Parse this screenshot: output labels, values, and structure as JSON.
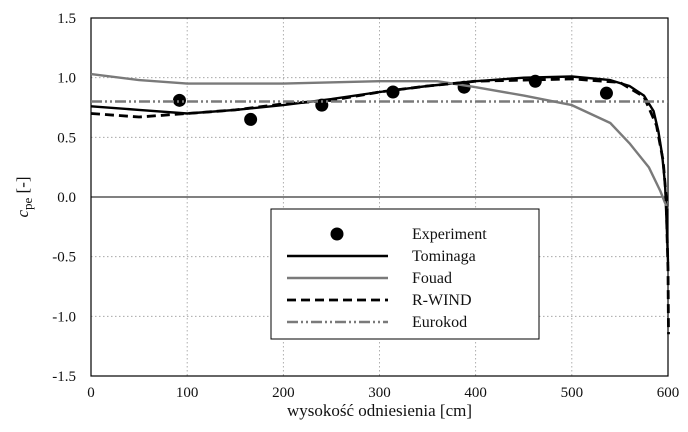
{
  "chart_data": {
    "type": "line",
    "xlabel": "wysokość odniesienia [cm]",
    "ylabel": {
      "main": "c",
      "subscript": "pe",
      "suffix": " [-]"
    },
    "xlim": [
      0,
      600
    ],
    "ylim": [
      -1.5,
      1.5
    ],
    "xticks": [
      "0",
      "100",
      "200",
      "300",
      "400",
      "500",
      "600"
    ],
    "yticks": [
      "1.5",
      "1.0",
      "0.5",
      "0.0",
      "-0.5",
      "-1.0",
      "-1.5"
    ],
    "xtick_values": [
      0,
      100,
      200,
      300,
      400,
      500,
      600
    ],
    "ytick_values": [
      1.5,
      1.0,
      0.5,
      0.0,
      -0.5,
      -1.0,
      -1.5
    ],
    "grid": true,
    "legend_position": "bottom-center",
    "series": [
      {
        "name": "Experiment",
        "kind": "markers",
        "color": "#000000",
        "points": [
          [
            92,
            0.81
          ],
          [
            166,
            0.65
          ],
          [
            240,
            0.77
          ],
          [
            314,
            0.88
          ],
          [
            388,
            0.92
          ],
          [
            462,
            0.97
          ],
          [
            536,
            0.87
          ]
        ]
      },
      {
        "name": "Tominaga",
        "kind": "line",
        "color": "#000000",
        "dash": "solid",
        "points": [
          [
            0,
            0.76
          ],
          [
            50,
            0.73
          ],
          [
            100,
            0.7
          ],
          [
            150,
            0.73
          ],
          [
            200,
            0.77
          ],
          [
            250,
            0.82
          ],
          [
            300,
            0.88
          ],
          [
            350,
            0.93
          ],
          [
            400,
            0.97
          ],
          [
            450,
            1.0
          ],
          [
            500,
            1.01
          ],
          [
            540,
            0.98
          ],
          [
            560,
            0.93
          ],
          [
            575,
            0.85
          ],
          [
            585,
            0.72
          ],
          [
            590,
            0.55
          ],
          [
            594,
            0.35
          ],
          [
            597,
            0.1
          ],
          [
            599,
            -0.3
          ],
          [
            600,
            -0.55
          ]
        ]
      },
      {
        "name": "Fouad",
        "kind": "line",
        "color": "#7a7a7a",
        "dash": "solid",
        "points": [
          [
            0,
            1.03
          ],
          [
            50,
            0.98
          ],
          [
            100,
            0.95
          ],
          [
            200,
            0.95
          ],
          [
            300,
            0.97
          ],
          [
            360,
            0.97
          ],
          [
            400,
            0.92
          ],
          [
            450,
            0.85
          ],
          [
            500,
            0.77
          ],
          [
            540,
            0.62
          ],
          [
            560,
            0.45
          ],
          [
            580,
            0.25
          ],
          [
            592,
            0.05
          ],
          [
            597,
            -0.05
          ],
          [
            600,
            -0.1
          ]
        ]
      },
      {
        "name": "R-WIND",
        "kind": "line",
        "color": "#000000",
        "dash": "dashed",
        "points": [
          [
            0,
            0.7
          ],
          [
            50,
            0.67
          ],
          [
            100,
            0.7
          ],
          [
            150,
            0.73
          ],
          [
            200,
            0.78
          ],
          [
            250,
            0.81
          ],
          [
            300,
            0.88
          ],
          [
            350,
            0.93
          ],
          [
            400,
            0.97
          ],
          [
            450,
            0.98
          ],
          [
            500,
            0.99
          ],
          [
            550,
            0.96
          ],
          [
            575,
            0.84
          ],
          [
            588,
            0.6
          ],
          [
            595,
            0.3
          ],
          [
            598,
            0.0
          ],
          [
            599,
            -0.3
          ],
          [
            600,
            -0.6
          ],
          [
            600.5,
            -1.15
          ]
        ]
      },
      {
        "name": "Eurokod",
        "kind": "line",
        "color": "#7a7a7a",
        "dash": "dashdotdot",
        "points": [
          [
            0,
            0.8
          ],
          [
            600,
            0.8
          ]
        ]
      }
    ]
  }
}
